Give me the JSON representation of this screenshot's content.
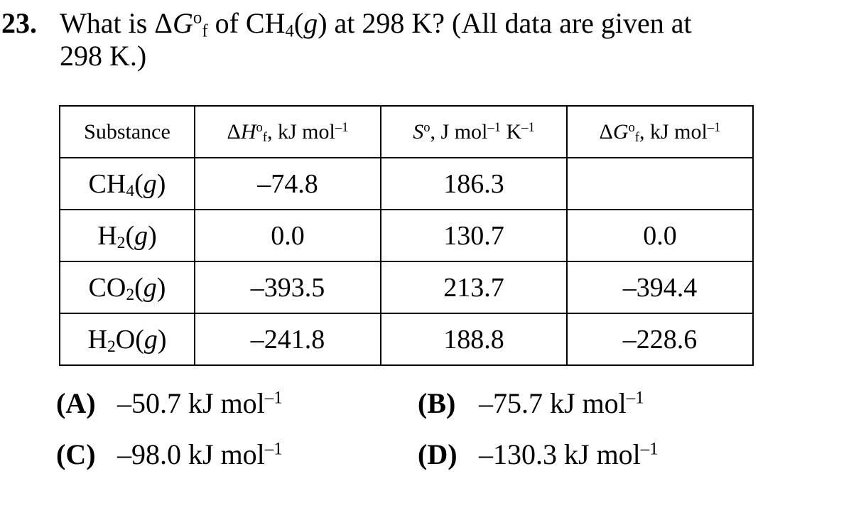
{
  "question": {
    "number": "23.",
    "line1": {
      "pre": "What is Δ",
      "G": "G",
      "deg": "o",
      "f": "f",
      "mid": " of CH",
      "sub4": "4",
      "open": "(",
      "g": "g",
      "post": ") at 298 K?  (All data are given at"
    },
    "line2": "298 K.)"
  },
  "table": {
    "headers": {
      "substance": "Substance",
      "h": {
        "delta": "Δ",
        "sym": "H",
        "deg": "o",
        "f": "f",
        "unit": ", kJ mol",
        "exp": "–1"
      },
      "s": {
        "sym": "S",
        "deg": "o",
        "unit": ", J mol",
        "exp1": "–1",
        "k": " K",
        "exp2": "–1"
      },
      "g": {
        "delta": "Δ",
        "sym": "G",
        "deg": "o",
        "f": "f",
        "unit": ", kJ mol",
        "exp": "–1"
      }
    },
    "rows": [
      {
        "formula": {
          "base": "CH",
          "sub": "4",
          "tail": "",
          "state": "g"
        },
        "dH": "–74.8",
        "S": "186.3",
        "dG": ""
      },
      {
        "formula": {
          "base": "H",
          "sub": "2",
          "tail": "",
          "state": "g"
        },
        "dH": "0.0",
        "S": "130.7",
        "dG": "0.0"
      },
      {
        "formula": {
          "base": "CO",
          "sub": "2",
          "tail": "",
          "state": "g"
        },
        "dH": "–393.5",
        "S": "213.7",
        "dG": "–394.4"
      },
      {
        "formula": {
          "base": "H",
          "sub": "2",
          "tail": "O",
          "state": "g"
        },
        "dH": "–241.8",
        "S": "188.8",
        "dG": "–228.6"
      }
    ]
  },
  "answers": [
    {
      "label": "(A)",
      "value": "–50.7 kJ mol",
      "exp": "–1"
    },
    {
      "label": "(B)",
      "value": "–75.7 kJ mol",
      "exp": "–1"
    },
    {
      "label": "(C)",
      "value": "–98.0 kJ mol",
      "exp": "–1"
    },
    {
      "label": "(D)",
      "value": "–130.3 kJ mol",
      "exp": "–1"
    }
  ]
}
